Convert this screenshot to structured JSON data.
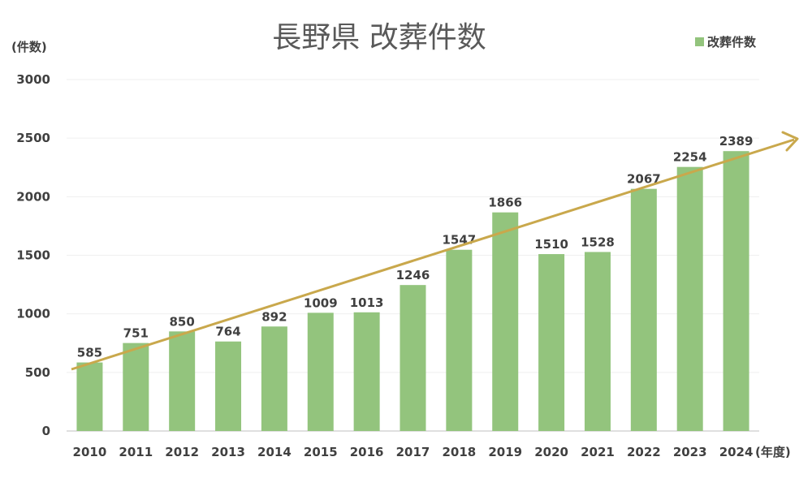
{
  "chart_data": {
    "type": "bar",
    "title": "長野県 改葬件数",
    "ylabel": "(件数)",
    "xlabel": "(年度)",
    "ylim": [
      0,
      3000
    ],
    "yticks": [
      0,
      500,
      1000,
      1500,
      2000,
      2500,
      3000
    ],
    "grid": true,
    "legend": "top-right",
    "categories": [
      "2010",
      "2011",
      "2012",
      "2013",
      "2014",
      "2015",
      "2016",
      "2017",
      "2018",
      "2019",
      "2020",
      "2021",
      "2022",
      "2023",
      "2024"
    ],
    "series": [
      {
        "name": "改葬件数",
        "values": [
          585,
          751,
          850,
          764,
          892,
          1009,
          1013,
          1246,
          1547,
          1866,
          1510,
          1528,
          2067,
          2254,
          2389
        ],
        "color": "#93c47d"
      }
    ],
    "annotations": [
      {
        "type": "trend-arrow",
        "color": "#c9a84c"
      }
    ]
  }
}
